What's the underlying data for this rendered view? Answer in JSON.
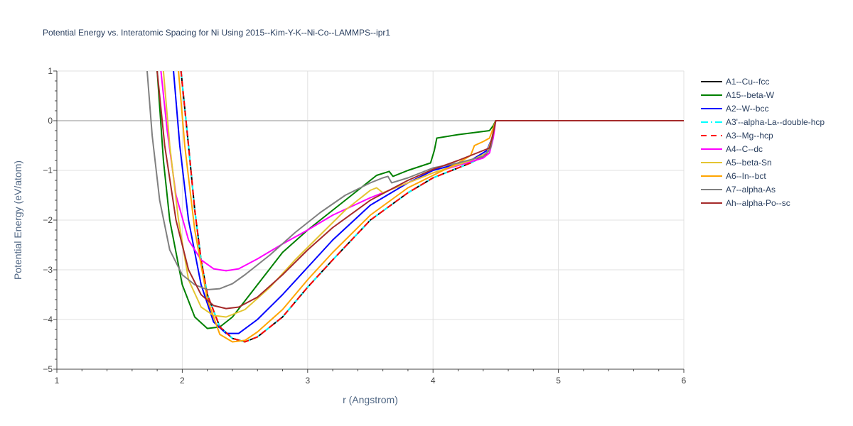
{
  "chart_data": {
    "type": "line",
    "title": "Potential Energy vs. Interatomic Spacing for Ni Using 2015--Kim-Y-K--Ni-Co--LAMMPS--ipr1",
    "xlabel": "r (Angstrom)",
    "ylabel": "Potential Energy (eV/atom)",
    "xlim": [
      1,
      6
    ],
    "ylim": [
      -5,
      1
    ],
    "x_ticks": [
      "1",
      "2",
      "3",
      "4",
      "5",
      "6"
    ],
    "y_ticks": [
      "1",
      "0",
      "−1",
      "−2",
      "−3",
      "−4",
      "−5"
    ],
    "grid": true,
    "legend_position": "right",
    "series": [
      {
        "name": "A1--Cu--fcc",
        "color": "#000000",
        "dash": "solid",
        "points": [
          [
            1.99,
            1.0
          ],
          [
            2.05,
            -0.5
          ],
          [
            2.1,
            -1.8
          ],
          [
            2.15,
            -2.8
          ],
          [
            2.2,
            -3.5
          ],
          [
            2.3,
            -4.15
          ],
          [
            2.4,
            -4.38
          ],
          [
            2.5,
            -4.45
          ],
          [
            2.6,
            -4.35
          ],
          [
            2.8,
            -3.95
          ],
          [
            3.0,
            -3.35
          ],
          [
            3.2,
            -2.8
          ],
          [
            3.5,
            -2.0
          ],
          [
            3.8,
            -1.45
          ],
          [
            4.0,
            -1.15
          ],
          [
            4.3,
            -0.85
          ],
          [
            4.43,
            -0.68
          ],
          [
            4.47,
            -0.4
          ],
          [
            4.5,
            0.0
          ],
          [
            6.0,
            0.0
          ]
        ]
      },
      {
        "name": "A15--beta-W",
        "color": "#008000",
        "dash": "solid",
        "points": [
          [
            1.8,
            1.0
          ],
          [
            1.85,
            -0.8
          ],
          [
            1.9,
            -2.0
          ],
          [
            2.0,
            -3.3
          ],
          [
            2.1,
            -3.95
          ],
          [
            2.2,
            -4.18
          ],
          [
            2.3,
            -4.15
          ],
          [
            2.4,
            -3.95
          ],
          [
            2.6,
            -3.3
          ],
          [
            2.8,
            -2.65
          ],
          [
            3.0,
            -2.2
          ],
          [
            3.2,
            -1.8
          ],
          [
            3.4,
            -1.4
          ],
          [
            3.55,
            -1.1
          ],
          [
            3.65,
            -1.02
          ],
          [
            3.68,
            -1.12
          ],
          [
            3.8,
            -1.0
          ],
          [
            3.98,
            -0.85
          ],
          [
            4.01,
            -0.6
          ],
          [
            4.03,
            -0.35
          ],
          [
            4.2,
            -0.28
          ],
          [
            4.45,
            -0.2
          ],
          [
            4.48,
            -0.1
          ],
          [
            4.5,
            0.0
          ],
          [
            6.0,
            0.0
          ]
        ]
      },
      {
        "name": "A2--W--bcc",
        "color": "#0000ff",
        "dash": "solid",
        "points": [
          [
            1.93,
            1.0
          ],
          [
            1.98,
            -0.5
          ],
          [
            2.05,
            -2.0
          ],
          [
            2.15,
            -3.3
          ],
          [
            2.25,
            -4.05
          ],
          [
            2.35,
            -4.28
          ],
          [
            2.45,
            -4.28
          ],
          [
            2.6,
            -4.0
          ],
          [
            2.8,
            -3.5
          ],
          [
            3.0,
            -2.95
          ],
          [
            3.2,
            -2.4
          ],
          [
            3.5,
            -1.7
          ],
          [
            3.8,
            -1.25
          ],
          [
            4.0,
            -1.0
          ],
          [
            4.3,
            -0.8
          ],
          [
            4.43,
            -0.6
          ],
          [
            4.47,
            -0.35
          ],
          [
            4.5,
            0.0
          ],
          [
            6.0,
            0.0
          ]
        ]
      },
      {
        "name": "A3'--alpha-La--double-hcp",
        "color": "#00ffff",
        "dash": "dashdot",
        "points": [
          [
            1.99,
            1.0
          ],
          [
            2.05,
            -0.5
          ],
          [
            2.1,
            -1.8
          ],
          [
            2.15,
            -2.8
          ],
          [
            2.2,
            -3.5
          ],
          [
            2.3,
            -4.15
          ],
          [
            2.4,
            -4.38
          ],
          [
            2.5,
            -4.45
          ],
          [
            2.6,
            -4.35
          ],
          [
            2.8,
            -3.95
          ],
          [
            3.0,
            -3.35
          ],
          [
            3.2,
            -2.8
          ],
          [
            3.5,
            -2.0
          ],
          [
            3.8,
            -1.45
          ],
          [
            4.0,
            -1.15
          ],
          [
            4.3,
            -0.85
          ],
          [
            4.43,
            -0.68
          ],
          [
            4.47,
            -0.4
          ],
          [
            4.5,
            0.0
          ],
          [
            6.0,
            0.0
          ]
        ]
      },
      {
        "name": "A3--Mg--hcp",
        "color": "#ff0000",
        "dash": "dash",
        "points": [
          [
            1.99,
            1.0
          ],
          [
            2.05,
            -0.5
          ],
          [
            2.1,
            -1.8
          ],
          [
            2.15,
            -2.8
          ],
          [
            2.2,
            -3.5
          ],
          [
            2.3,
            -4.15
          ],
          [
            2.4,
            -4.38
          ],
          [
            2.5,
            -4.45
          ],
          [
            2.6,
            -4.35
          ],
          [
            2.8,
            -3.95
          ],
          [
            3.0,
            -3.35
          ],
          [
            3.2,
            -2.8
          ],
          [
            3.5,
            -2.0
          ],
          [
            3.8,
            -1.45
          ],
          [
            4.0,
            -1.15
          ],
          [
            4.3,
            -0.85
          ],
          [
            4.43,
            -0.68
          ],
          [
            4.47,
            -0.4
          ],
          [
            4.5,
            0.0
          ],
          [
            6.0,
            0.0
          ]
        ]
      },
      {
        "name": "A4--C--dc",
        "color": "#ff00ff",
        "dash": "solid",
        "points": [
          [
            1.83,
            1.0
          ],
          [
            1.88,
            -0.2
          ],
          [
            1.95,
            -1.5
          ],
          [
            2.05,
            -2.4
          ],
          [
            2.15,
            -2.8
          ],
          [
            2.25,
            -2.98
          ],
          [
            2.35,
            -3.02
          ],
          [
            2.45,
            -2.98
          ],
          [
            2.6,
            -2.78
          ],
          [
            2.8,
            -2.48
          ],
          [
            3.0,
            -2.2
          ],
          [
            3.2,
            -1.9
          ],
          [
            3.5,
            -1.55
          ],
          [
            3.8,
            -1.25
          ],
          [
            4.0,
            -1.05
          ],
          [
            4.2,
            -0.9
          ],
          [
            4.4,
            -0.75
          ],
          [
            4.45,
            -0.65
          ],
          [
            4.48,
            -0.35
          ],
          [
            4.5,
            0.0
          ],
          [
            6.0,
            0.0
          ]
        ]
      },
      {
        "name": "A5--beta-Sn",
        "color": "#e4c531",
        "dash": "solid",
        "points": [
          [
            1.85,
            1.0
          ],
          [
            1.9,
            -0.5
          ],
          [
            1.97,
            -2.0
          ],
          [
            2.05,
            -3.2
          ],
          [
            2.15,
            -3.75
          ],
          [
            2.25,
            -3.92
          ],
          [
            2.35,
            -3.95
          ],
          [
            2.5,
            -3.8
          ],
          [
            2.7,
            -3.35
          ],
          [
            2.9,
            -2.8
          ],
          [
            3.1,
            -2.3
          ],
          [
            3.3,
            -1.8
          ],
          [
            3.5,
            -1.4
          ],
          [
            3.55,
            -1.35
          ],
          [
            3.6,
            -1.45
          ],
          [
            3.8,
            -1.25
          ],
          [
            4.0,
            -1.05
          ],
          [
            4.3,
            -0.8
          ],
          [
            4.43,
            -0.65
          ],
          [
            4.47,
            -0.35
          ],
          [
            4.5,
            0.0
          ],
          [
            6.0,
            0.0
          ]
        ]
      },
      {
        "name": "A6--In--bct",
        "color": "#ffa500",
        "dash": "solid",
        "points": [
          [
            1.97,
            1.0
          ],
          [
            2.02,
            -0.5
          ],
          [
            2.1,
            -2.2
          ],
          [
            2.2,
            -3.6
          ],
          [
            2.3,
            -4.3
          ],
          [
            2.4,
            -4.45
          ],
          [
            2.5,
            -4.42
          ],
          [
            2.6,
            -4.25
          ],
          [
            2.8,
            -3.8
          ],
          [
            3.0,
            -3.2
          ],
          [
            3.2,
            -2.65
          ],
          [
            3.5,
            -1.9
          ],
          [
            3.8,
            -1.35
          ],
          [
            4.0,
            -1.1
          ],
          [
            4.2,
            -0.85
          ],
          [
            4.3,
            -0.7
          ],
          [
            4.33,
            -0.5
          ],
          [
            4.4,
            -0.42
          ],
          [
            4.45,
            -0.35
          ],
          [
            4.48,
            -0.15
          ],
          [
            4.5,
            0.0
          ],
          [
            6.0,
            0.0
          ]
        ]
      },
      {
        "name": "A7--alpha-As",
        "color": "#808080",
        "dash": "solid",
        "points": [
          [
            1.72,
            1.0
          ],
          [
            1.76,
            -0.3
          ],
          [
            1.82,
            -1.6
          ],
          [
            1.9,
            -2.6
          ],
          [
            2.0,
            -3.1
          ],
          [
            2.1,
            -3.3
          ],
          [
            2.2,
            -3.4
          ],
          [
            2.3,
            -3.38
          ],
          [
            2.4,
            -3.28
          ],
          [
            2.5,
            -3.1
          ],
          [
            2.7,
            -2.7
          ],
          [
            2.9,
            -2.25
          ],
          [
            3.1,
            -1.85
          ],
          [
            3.3,
            -1.5
          ],
          [
            3.5,
            -1.25
          ],
          [
            3.6,
            -1.15
          ],
          [
            3.64,
            -1.12
          ],
          [
            3.67,
            -1.25
          ],
          [
            3.8,
            -1.15
          ],
          [
            4.0,
            -0.95
          ],
          [
            4.2,
            -0.85
          ],
          [
            4.4,
            -0.72
          ],
          [
            4.46,
            -0.55
          ],
          [
            4.48,
            -0.25
          ],
          [
            4.5,
            0.0
          ],
          [
            6.0,
            0.0
          ]
        ]
      },
      {
        "name": "Ah--alpha-Po--sc",
        "color": "#a52a2a",
        "dash": "solid",
        "points": [
          [
            1.8,
            1.0
          ],
          [
            1.86,
            -0.5
          ],
          [
            1.95,
            -2.0
          ],
          [
            2.05,
            -3.0
          ],
          [
            2.15,
            -3.5
          ],
          [
            2.25,
            -3.72
          ],
          [
            2.35,
            -3.78
          ],
          [
            2.45,
            -3.75
          ],
          [
            2.6,
            -3.55
          ],
          [
            2.8,
            -3.1
          ],
          [
            3.0,
            -2.6
          ],
          [
            3.2,
            -2.15
          ],
          [
            3.5,
            -1.6
          ],
          [
            3.8,
            -1.2
          ],
          [
            4.0,
            -0.98
          ],
          [
            4.2,
            -0.8
          ],
          [
            4.35,
            -0.65
          ],
          [
            4.45,
            -0.55
          ],
          [
            4.48,
            -0.25
          ],
          [
            4.5,
            0.0
          ],
          [
            6.0,
            0.0
          ]
        ]
      }
    ]
  }
}
